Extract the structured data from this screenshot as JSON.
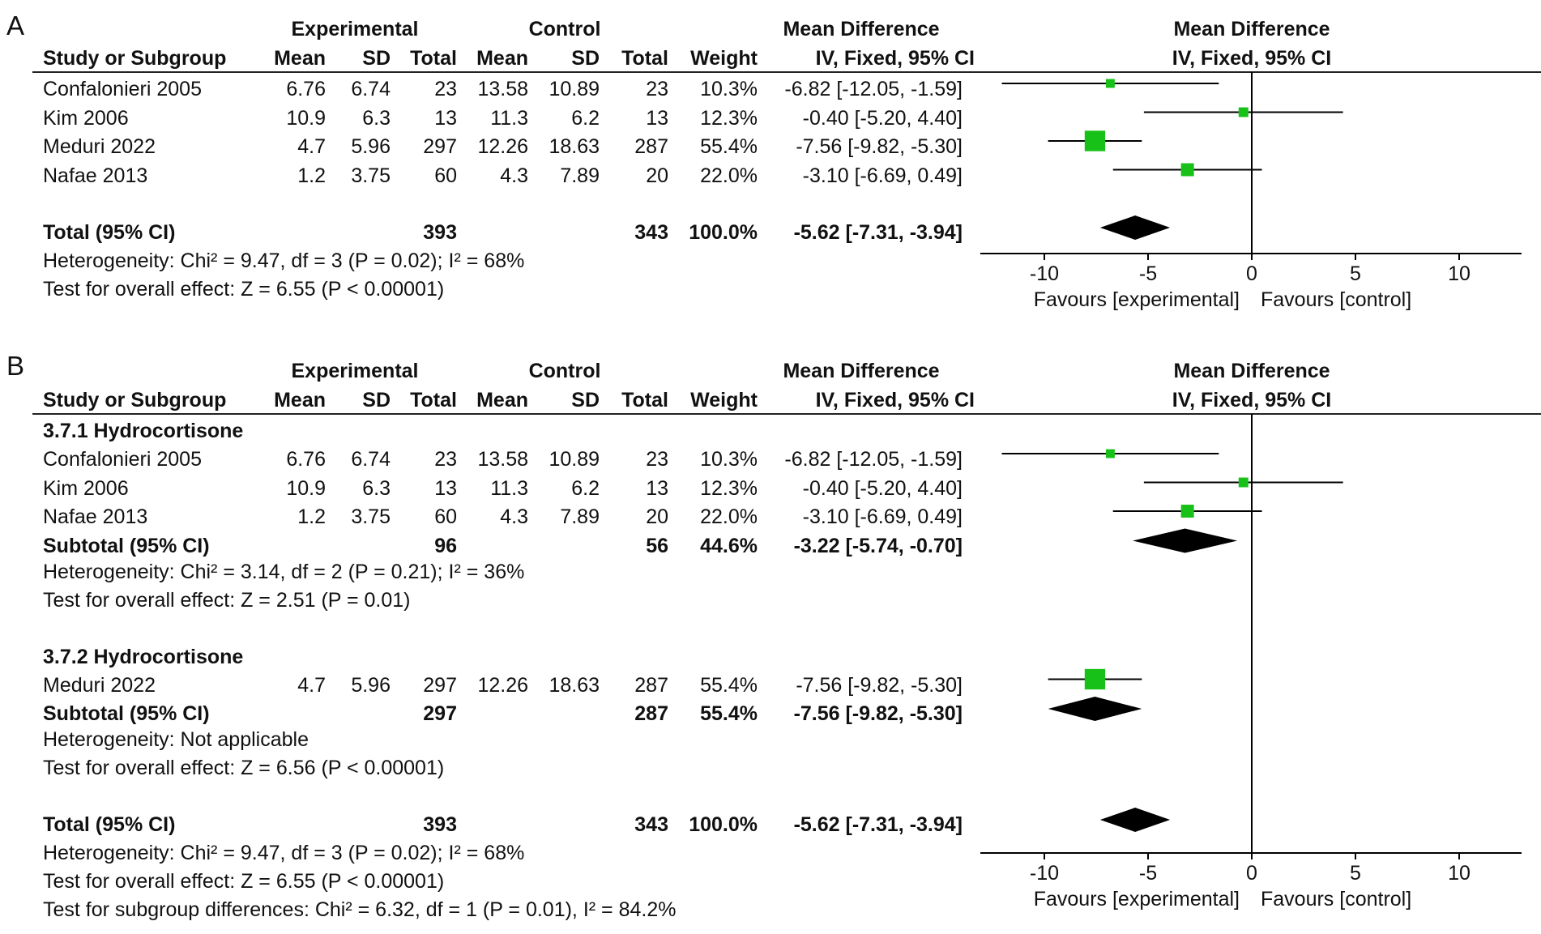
{
  "chart_data": [
    {
      "type": "forest",
      "panel_label": "A",
      "group_headers": {
        "experimental": "Experimental",
        "control": "Control",
        "md_text": "Mean Difference",
        "md_plot": "Mean Difference"
      },
      "columns": [
        "Study or Subgroup",
        "Mean",
        "SD",
        "Total",
        "Mean",
        "SD",
        "Total",
        "Weight",
        "IV, Fixed, 95% CI",
        "IV, Fixed, 95% CI"
      ],
      "rows": [
        {
          "kind": "study",
          "name": "Confalonieri 2005",
          "e_mean": "6.76",
          "e_sd": "6.74",
          "e_total": "23",
          "c_mean": "13.58",
          "c_sd": "10.89",
          "c_total": "23",
          "weight": "10.3%",
          "ci_text": "-6.82 [-12.05, -1.59]",
          "md": -6.82,
          "lo": -12.05,
          "hi": -1.59,
          "w": 10.3
        },
        {
          "kind": "study",
          "name": "Kim 2006",
          "e_mean": "10.9",
          "e_sd": "6.3",
          "e_total": "13",
          "c_mean": "11.3",
          "c_sd": "6.2",
          "c_total": "13",
          "weight": "12.3%",
          "ci_text": "-0.40 [-5.20, 4.40]",
          "md": -0.4,
          "lo": -5.2,
          "hi": 4.4,
          "w": 12.3
        },
        {
          "kind": "study",
          "name": "Meduri 2022",
          "e_mean": "4.7",
          "e_sd": "5.96",
          "e_total": "297",
          "c_mean": "12.26",
          "c_sd": "18.63",
          "c_total": "287",
          "weight": "55.4%",
          "ci_text": "-7.56 [-9.82, -5.30]",
          "md": -7.56,
          "lo": -9.82,
          "hi": -5.3,
          "w": 55.4
        },
        {
          "kind": "study",
          "name": "Nafae 2013",
          "e_mean": "1.2",
          "e_sd": "3.75",
          "e_total": "60",
          "c_mean": "4.3",
          "c_sd": "7.89",
          "c_total": "20",
          "weight": "22.0%",
          "ci_text": "-3.10 [-6.69, 0.49]",
          "md": -3.1,
          "lo": -6.69,
          "hi": 0.49,
          "w": 22.0
        },
        {
          "kind": "spacer"
        },
        {
          "kind": "total",
          "name": "Total (95% CI)",
          "e_total": "393",
          "c_total": "343",
          "weight": "100.0%",
          "ci_text": "-5.62 [-7.31, -3.94]",
          "md": -5.62,
          "lo": -7.31,
          "hi": -3.94
        },
        {
          "kind": "text",
          "text": "Heterogeneity: Chi² = 9.47, df = 3 (P = 0.02); I² = 68%"
        },
        {
          "kind": "text",
          "text": "Test for overall effect: Z = 6.55 (P < 0.00001)"
        }
      ],
      "xlim": [
        -12.5,
        12.5
      ],
      "x_ticks": [
        -10,
        -5,
        0,
        5,
        10
      ],
      "x_tick_labels": [
        "-10",
        "-5",
        "0",
        "5",
        "10"
      ],
      "favours_left": "Favours [experimental]",
      "favours_right": "Favours [control]",
      "colors": {
        "square": "#17c117",
        "diamond": "#000000",
        "line": "#000000"
      }
    },
    {
      "type": "forest",
      "panel_label": "B",
      "group_headers": {
        "experimental": "Experimental",
        "control": "Control",
        "md_text": "Mean Difference",
        "md_plot": "Mean Difference"
      },
      "columns": [
        "Study or Subgroup",
        "Mean",
        "SD",
        "Total",
        "Mean",
        "SD",
        "Total",
        "Weight",
        "IV, Fixed, 95% CI",
        "IV, Fixed, 95% CI"
      ],
      "rows": [
        {
          "kind": "group",
          "name": "3.7.1 Hydrocortisone"
        },
        {
          "kind": "study",
          "name": "Confalonieri 2005",
          "e_mean": "6.76",
          "e_sd": "6.74",
          "e_total": "23",
          "c_mean": "13.58",
          "c_sd": "10.89",
          "c_total": "23",
          "weight": "10.3%",
          "ci_text": "-6.82 [-12.05, -1.59]",
          "md": -6.82,
          "lo": -12.05,
          "hi": -1.59,
          "w": 10.3
        },
        {
          "kind": "study",
          "name": "Kim 2006",
          "e_mean": "10.9",
          "e_sd": "6.3",
          "e_total": "13",
          "c_mean": "11.3",
          "c_sd": "6.2",
          "c_total": "13",
          "weight": "12.3%",
          "ci_text": "-0.40 [-5.20, 4.40]",
          "md": -0.4,
          "lo": -5.2,
          "hi": 4.4,
          "w": 12.3
        },
        {
          "kind": "study",
          "name": "Nafae 2013",
          "e_mean": "1.2",
          "e_sd": "3.75",
          "e_total": "60",
          "c_mean": "4.3",
          "c_sd": "7.89",
          "c_total": "20",
          "weight": "22.0%",
          "ci_text": "-3.10 [-6.69, 0.49]",
          "md": -3.1,
          "lo": -6.69,
          "hi": 0.49,
          "w": 22.0
        },
        {
          "kind": "subtotal",
          "name": "Subtotal (95% CI)",
          "e_total": "96",
          "c_total": "56",
          "weight": "44.6%",
          "ci_text": "-3.22 [-5.74, -0.70]",
          "md": -3.22,
          "lo": -5.74,
          "hi": -0.7
        },
        {
          "kind": "text",
          "text": "Heterogeneity: Chi² = 3.14, df = 2 (P = 0.21); I² = 36%"
        },
        {
          "kind": "text",
          "text": "Test for overall effect: Z = 2.51 (P = 0.01)"
        },
        {
          "kind": "spacer"
        },
        {
          "kind": "group",
          "name": "3.7.2 Hydrocortisone"
        },
        {
          "kind": "study",
          "name": "Meduri 2022",
          "e_mean": "4.7",
          "e_sd": "5.96",
          "e_total": "297",
          "c_mean": "12.26",
          "c_sd": "18.63",
          "c_total": "287",
          "weight": "55.4%",
          "ci_text": "-7.56 [-9.82, -5.30]",
          "md": -7.56,
          "lo": -9.82,
          "hi": -5.3,
          "w": 55.4
        },
        {
          "kind": "subtotal",
          "name": "Subtotal (95% CI)",
          "e_total": "297",
          "c_total": "287",
          "weight": "55.4%",
          "ci_text": "-7.56 [-9.82, -5.30]",
          "md": -7.56,
          "lo": -9.82,
          "hi": -5.3
        },
        {
          "kind": "text",
          "text": "Heterogeneity: Not applicable"
        },
        {
          "kind": "text",
          "text": "Test for overall effect: Z = 6.56 (P < 0.00001)"
        },
        {
          "kind": "spacer"
        },
        {
          "kind": "total",
          "name": "Total (95% CI)",
          "e_total": "393",
          "c_total": "343",
          "weight": "100.0%",
          "ci_text": "-5.62 [-7.31, -3.94]",
          "md": -5.62,
          "lo": -7.31,
          "hi": -3.94
        },
        {
          "kind": "text",
          "text": "Heterogeneity: Chi² = 9.47, df = 3 (P = 0.02); I² = 68%"
        },
        {
          "kind": "text",
          "text": "Test for overall effect: Z = 6.55 (P < 0.00001)"
        },
        {
          "kind": "text",
          "text": "Test for subgroup differences: Chi² = 6.32, df = 1 (P = 0.01), I² = 84.2%"
        }
      ],
      "xlim": [
        -12.5,
        12.5
      ],
      "x_ticks": [
        -10,
        -5,
        0,
        5,
        10
      ],
      "x_tick_labels": [
        "-10",
        "-5",
        "0",
        "5",
        "10"
      ],
      "favours_left": "Favours [experimental]",
      "favours_right": "Favours [control]",
      "colors": {
        "square": "#17c117",
        "diamond": "#000000",
        "line": "#000000"
      }
    }
  ]
}
